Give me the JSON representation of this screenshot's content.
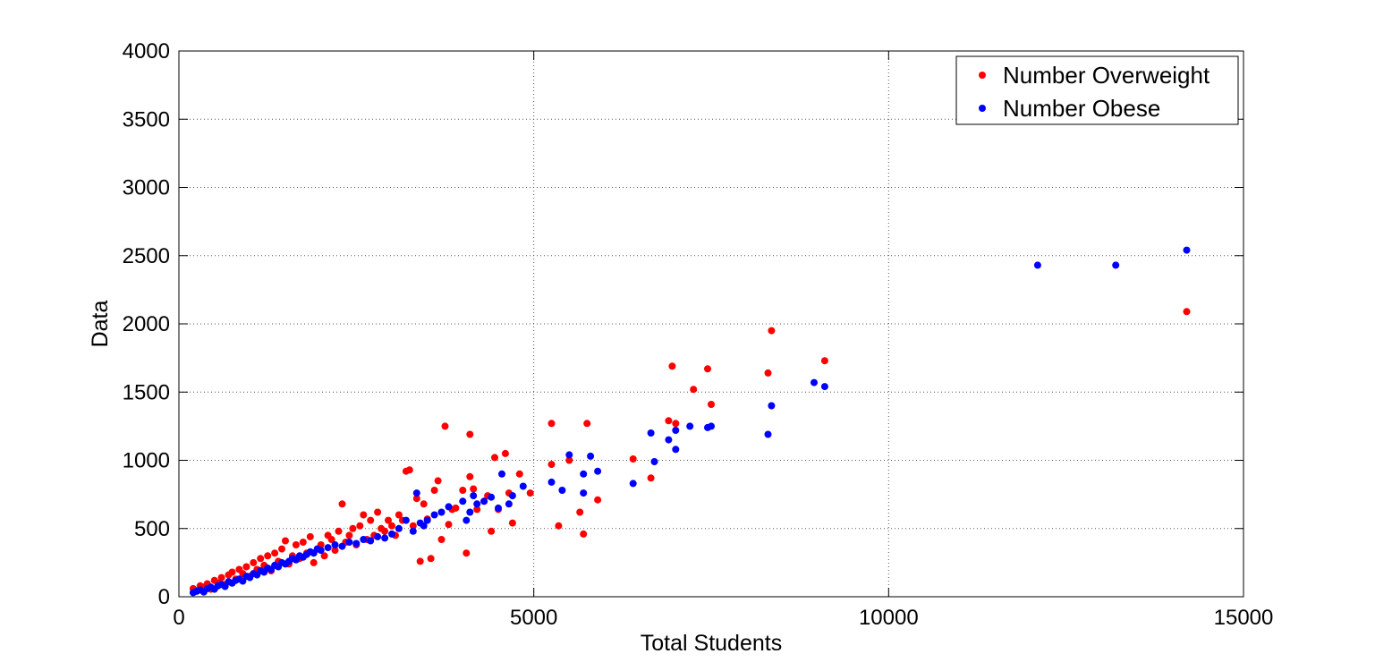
{
  "chart_data": {
    "type": "scatter",
    "title": "",
    "xlabel": "Total Students",
    "ylabel": "Data",
    "xlim": [
      0,
      15000
    ],
    "ylim": [
      0,
      4000
    ],
    "xticks": [
      "0",
      "5000",
      "10000",
      "15000"
    ],
    "yticks": [
      "0",
      "500",
      "1000",
      "1500",
      "2000",
      "2500",
      "3000",
      "3500",
      "4000"
    ],
    "grid": true,
    "legend_position": "top-right",
    "series": [
      {
        "name": "Number Overweight",
        "color": "#ff0000",
        "points": [
          [
            200,
            60
          ],
          [
            250,
            45
          ],
          [
            300,
            80
          ],
          [
            350,
            70
          ],
          [
            400,
            95
          ],
          [
            450,
            55
          ],
          [
            500,
            120
          ],
          [
            550,
            100
          ],
          [
            600,
            140
          ],
          [
            650,
            90
          ],
          [
            700,
            160
          ],
          [
            750,
            180
          ],
          [
            800,
            130
          ],
          [
            850,
            200
          ],
          [
            900,
            170
          ],
          [
            950,
            220
          ],
          [
            1000,
            150
          ],
          [
            1050,
            250
          ],
          [
            1100,
            200
          ],
          [
            1150,
            280
          ],
          [
            1200,
            230
          ],
          [
            1250,
            300
          ],
          [
            1300,
            190
          ],
          [
            1350,
            320
          ],
          [
            1400,
            260
          ],
          [
            1450,
            350
          ],
          [
            1500,
            410
          ],
          [
            1550,
            240
          ],
          [
            1600,
            300
          ],
          [
            1650,
            380
          ],
          [
            1700,
            280
          ],
          [
            1750,
            400
          ],
          [
            1800,
            320
          ],
          [
            1850,
            440
          ],
          [
            1900,
            250
          ],
          [
            1950,
            350
          ],
          [
            2000,
            380
          ],
          [
            2050,
            300
          ],
          [
            2100,
            450
          ],
          [
            2150,
            420
          ],
          [
            2200,
            340
          ],
          [
            2250,
            480
          ],
          [
            2300,
            680
          ],
          [
            2350,
            400
          ],
          [
            2400,
            450
          ],
          [
            2450,
            500
          ],
          [
            2500,
            380
          ],
          [
            2550,
            520
          ],
          [
            2600,
            600
          ],
          [
            2650,
            420
          ],
          [
            2700,
            560
          ],
          [
            2750,
            450
          ],
          [
            2800,
            620
          ],
          [
            2850,
            500
          ],
          [
            2900,
            480
          ],
          [
            2950,
            560
          ],
          [
            3000,
            520
          ],
          [
            3050,
            450
          ],
          [
            3100,
            600
          ],
          [
            3150,
            560
          ],
          [
            3200,
            920
          ],
          [
            3250,
            930
          ],
          [
            3300,
            520
          ],
          [
            3350,
            720
          ],
          [
            3400,
            260
          ],
          [
            3450,
            680
          ],
          [
            3500,
            570
          ],
          [
            3550,
            280
          ],
          [
            3600,
            780
          ],
          [
            3650,
            850
          ],
          [
            3700,
            420
          ],
          [
            3750,
            1250
          ],
          [
            3800,
            530
          ],
          [
            3850,
            640
          ],
          [
            3900,
            650
          ],
          [
            4000,
            780
          ],
          [
            4050,
            320
          ],
          [
            4100,
            1190
          ],
          [
            4100,
            880
          ],
          [
            4150,
            790
          ],
          [
            4200,
            640
          ],
          [
            4300,
            700
          ],
          [
            4350,
            740
          ],
          [
            4400,
            480
          ],
          [
            4450,
            1020
          ],
          [
            4500,
            640
          ],
          [
            4600,
            1050
          ],
          [
            4650,
            760
          ],
          [
            4700,
            540
          ],
          [
            4800,
            900
          ],
          [
            4950,
            760
          ],
          [
            5250,
            970
          ],
          [
            5250,
            1270
          ],
          [
            5350,
            520
          ],
          [
            5500,
            1000
          ],
          [
            5650,
            620
          ],
          [
            5700,
            460
          ],
          [
            5750,
            1270
          ],
          [
            5900,
            710
          ],
          [
            6400,
            1010
          ],
          [
            6650,
            870
          ],
          [
            6900,
            1290
          ],
          [
            6950,
            1690
          ],
          [
            7000,
            1270
          ],
          [
            7250,
            1520
          ],
          [
            7450,
            1670
          ],
          [
            7500,
            1410
          ],
          [
            8300,
            1640
          ],
          [
            8350,
            1950
          ],
          [
            9100,
            1730
          ],
          [
            14200,
            2090
          ]
        ]
      },
      {
        "name": "Number Obese",
        "color": "#0000ff",
        "points": [
          [
            200,
            30
          ],
          [
            250,
            40
          ],
          [
            300,
            50
          ],
          [
            350,
            35
          ],
          [
            400,
            60
          ],
          [
            450,
            70
          ],
          [
            500,
            55
          ],
          [
            550,
            80
          ],
          [
            600,
            90
          ],
          [
            650,
            75
          ],
          [
            700,
            110
          ],
          [
            750,
            100
          ],
          [
            800,
            120
          ],
          [
            850,
            130
          ],
          [
            900,
            115
          ],
          [
            950,
            150
          ],
          [
            1000,
            140
          ],
          [
            1050,
            170
          ],
          [
            1100,
            160
          ],
          [
            1150,
            190
          ],
          [
            1200,
            180
          ],
          [
            1250,
            210
          ],
          [
            1300,
            200
          ],
          [
            1350,
            230
          ],
          [
            1400,
            220
          ],
          [
            1450,
            250
          ],
          [
            1500,
            240
          ],
          [
            1550,
            260
          ],
          [
            1600,
            280
          ],
          [
            1650,
            270
          ],
          [
            1700,
            300
          ],
          [
            1750,
            290
          ],
          [
            1800,
            310
          ],
          [
            1850,
            330
          ],
          [
            1900,
            320
          ],
          [
            1950,
            350
          ],
          [
            2000,
            340
          ],
          [
            2100,
            360
          ],
          [
            2200,
            380
          ],
          [
            2300,
            370
          ],
          [
            2400,
            400
          ],
          [
            2500,
            390
          ],
          [
            2600,
            420
          ],
          [
            2700,
            410
          ],
          [
            2800,
            440
          ],
          [
            2900,
            430
          ],
          [
            3000,
            460
          ],
          [
            3100,
            500
          ],
          [
            3200,
            560
          ],
          [
            3300,
            480
          ],
          [
            3350,
            760
          ],
          [
            3400,
            540
          ],
          [
            3450,
            520
          ],
          [
            3500,
            560
          ],
          [
            3600,
            600
          ],
          [
            3700,
            620
          ],
          [
            3800,
            660
          ],
          [
            4000,
            700
          ],
          [
            4050,
            560
          ],
          [
            4100,
            620
          ],
          [
            4150,
            740
          ],
          [
            4200,
            680
          ],
          [
            4300,
            700
          ],
          [
            4400,
            730
          ],
          [
            4500,
            650
          ],
          [
            4550,
            900
          ],
          [
            4650,
            680
          ],
          [
            4700,
            740
          ],
          [
            4850,
            810
          ],
          [
            5250,
            840
          ],
          [
            5400,
            780
          ],
          [
            5500,
            1040
          ],
          [
            5700,
            760
          ],
          [
            5700,
            900
          ],
          [
            5800,
            1030
          ],
          [
            5900,
            920
          ],
          [
            6400,
            830
          ],
          [
            6650,
            1200
          ],
          [
            6700,
            990
          ],
          [
            6900,
            1150
          ],
          [
            7000,
            1220
          ],
          [
            7000,
            1080
          ],
          [
            7200,
            1250
          ],
          [
            7450,
            1240
          ],
          [
            7500,
            1250
          ],
          [
            8300,
            1190
          ],
          [
            8350,
            1400
          ],
          [
            8950,
            1570
          ],
          [
            9100,
            1540
          ],
          [
            12100,
            2430
          ],
          [
            13200,
            2430
          ],
          [
            14200,
            2540
          ]
        ]
      }
    ]
  }
}
